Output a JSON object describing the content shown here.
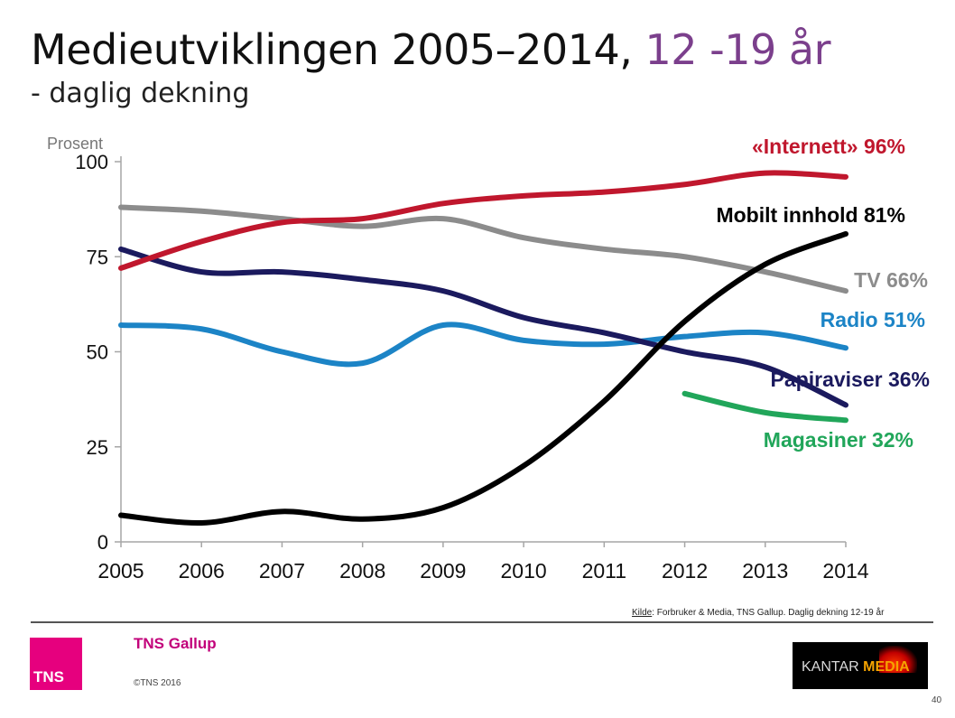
{
  "title_main": "Medieutviklingen 2005–2014,",
  "title_accent": "12 -19 år",
  "subtitle": "- daglig dekning",
  "source_prefix": "Kilde",
  "source_text": ": Forbruker & Media, TNS Gallup. Daglig dekning 12-19 år",
  "tns_logo_text": "TNS",
  "tns_name": "TNS Gallup",
  "copyright": "©TNS 2016",
  "kantar_part1": "KANTAR",
  "kantar_part2": "MEDIA",
  "page_number": "40",
  "chart_data": {
    "type": "line",
    "ylabel": "Prosent",
    "ylim": [
      0,
      100
    ],
    "yticks": [
      0,
      25,
      50,
      75,
      100
    ],
    "x": [
      "2005",
      "2006",
      "2007",
      "2008",
      "2009",
      "2010",
      "2011",
      "2012",
      "2013",
      "2014"
    ],
    "grid": false,
    "series": [
      {
        "name": "«Internett» 96%",
        "color": "#c0172d",
        "values": [
          72,
          79,
          84,
          85,
          89,
          91,
          92,
          94,
          97,
          96
        ]
      },
      {
        "name": "Mobilt innhold 81%",
        "color": "#000000",
        "values": [
          7,
          5,
          8,
          6,
          9,
          20,
          37,
          58,
          73,
          81
        ]
      },
      {
        "name": "TV 66%",
        "color": "#8c8c8c",
        "values": [
          88,
          87,
          85,
          83,
          85,
          80,
          77,
          75,
          71,
          66
        ]
      },
      {
        "name": "Radio 51%",
        "color": "#1c84c6",
        "values": [
          57,
          56,
          50,
          47,
          57,
          53,
          52,
          54,
          55,
          51
        ]
      },
      {
        "name": "Papiraviser 36%",
        "color": "#1b1a5e",
        "values": [
          77,
          71,
          71,
          69,
          66,
          59,
          55,
          50,
          46,
          36
        ]
      },
      {
        "name": "Magasiner 32%",
        "color": "#21a65a",
        "values": [
          null,
          null,
          null,
          null,
          null,
          null,
          null,
          39,
          34,
          32
        ]
      }
    ]
  }
}
